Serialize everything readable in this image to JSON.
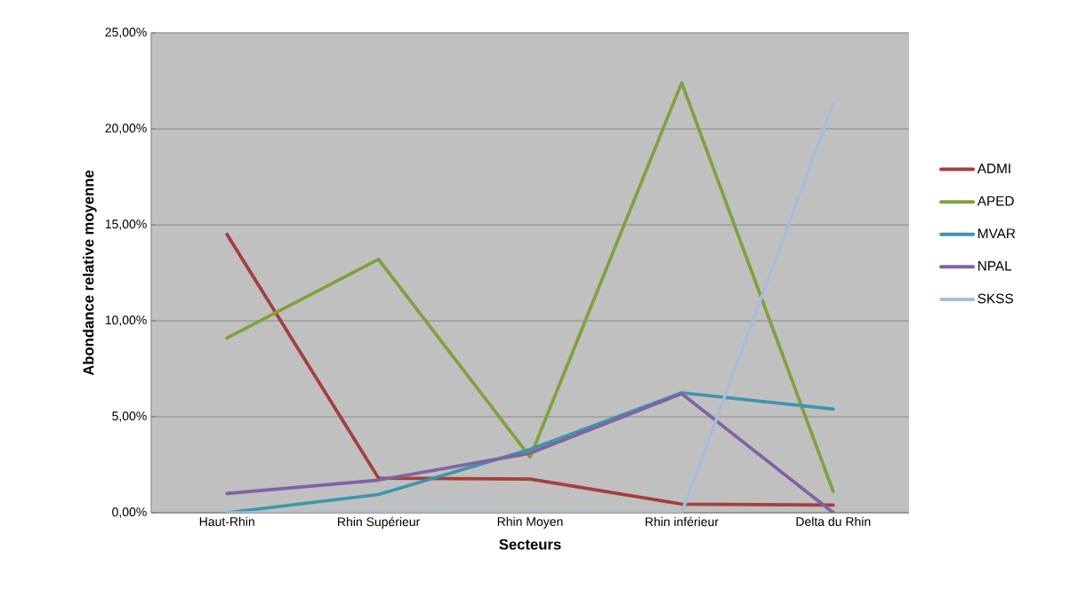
{
  "chart_data": {
    "type": "line",
    "xlabel": "Secteurs",
    "ylabel": "Abondance relative moyenne",
    "categories": [
      "Haut-Rhin",
      "Rhin Supérieur",
      "Rhin Moyen",
      "Rhin inférieur",
      "Delta du Rhin"
    ],
    "series": [
      {
        "name": "ADMI",
        "color": "#a5403d",
        "values": [
          14.5,
          1.8,
          1.75,
          0.45,
          0.4
        ]
      },
      {
        "name": "APED",
        "color": "#7fa23f",
        "values": [
          9.1,
          13.2,
          2.9,
          22.4,
          1.1
        ]
      },
      {
        "name": "MVAR",
        "color": "#3b97ad",
        "values": [
          0,
          0.95,
          3.3,
          6.25,
          5.4
        ]
      },
      {
        "name": "NPAL",
        "color": "#8064a2",
        "values": [
          1.0,
          1.7,
          3.1,
          6.2,
          0
        ]
      },
      {
        "name": "SKSS",
        "color": "#a8bcda",
        "values": [
          0,
          0,
          0,
          0,
          21.3
        ]
      }
    ],
    "ylim": [
      0,
      25
    ],
    "yticks": [
      {
        "value": 0,
        "label": "0,00%"
      },
      {
        "value": 5,
        "label": "5,00%"
      },
      {
        "value": 10,
        "label": "10,00%"
      },
      {
        "value": 15,
        "label": "15,00%"
      },
      {
        "value": 20,
        "label": "20,00%"
      },
      {
        "value": 25,
        "label": "25,00%"
      }
    ],
    "grid": "y",
    "legend": "right",
    "marker": "none",
    "line_style": "solid"
  }
}
